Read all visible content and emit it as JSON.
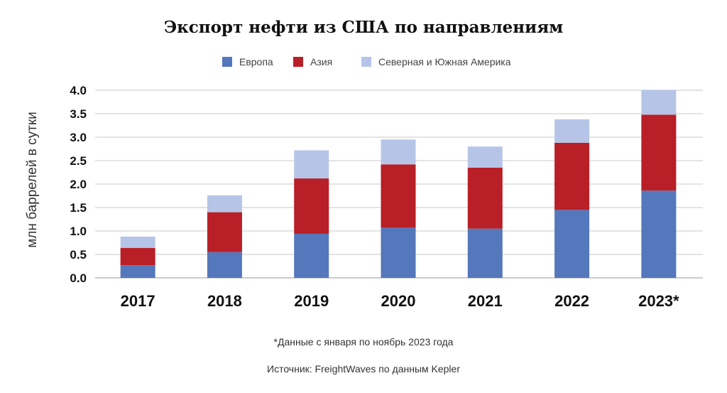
{
  "chart_data": {
    "type": "bar",
    "stacked": true,
    "title": "Экспорт нефти из США по направлениям",
    "ylabel": "млн баррелей в сутки",
    "xlabel": "",
    "categories": [
      "2017",
      "2018",
      "2019",
      "2020",
      "2021",
      "2022",
      "2023*"
    ],
    "ylim": [
      0,
      4.0
    ],
    "yticks": [
      "0.0",
      "0.5",
      "1.0",
      "1.5",
      "2.0",
      "2.5",
      "3.0",
      "3.5",
      "4.0"
    ],
    "grid": true,
    "legend_position": "top",
    "series": [
      {
        "name": "Европа",
        "color": "#5577bb",
        "values": [
          0.27,
          0.55,
          0.94,
          1.07,
          1.05,
          1.45,
          1.86
        ]
      },
      {
        "name": "Азия",
        "color": "#b91f26",
        "values": [
          0.37,
          0.85,
          1.18,
          1.35,
          1.3,
          1.43,
          1.62
        ]
      },
      {
        "name": "Северная и Южная Америка",
        "color": "#b6c5e7",
        "values": [
          0.24,
          0.36,
          0.6,
          0.53,
          0.45,
          0.5,
          0.53
        ]
      }
    ]
  },
  "footnote": "*Данные с января по ноябрь 2023 года",
  "source": "Источник: FreightWaves по данным Kepler"
}
